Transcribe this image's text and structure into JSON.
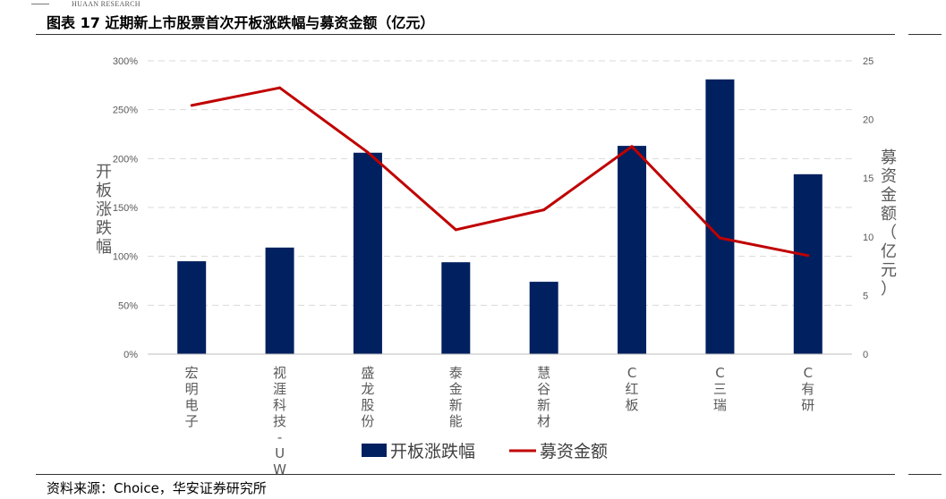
{
  "header": {
    "brand": "HUAAN RESEARCH",
    "title": "图表 17 近期新上市股票首次开板涨跌幅与募资金额（亿元）"
  },
  "source": "资料来源：Choice，华安证券研究所",
  "colors": {
    "bar": "#002060",
    "line": "#C00000",
    "grid": "#D9D9D9",
    "tick_text": "#595959"
  },
  "chart_data": {
    "type": "bar",
    "categories": [
      "宏明电子",
      "视涯科技-UW",
      "盛龙股份",
      "泰金新能",
      "慧谷新材",
      "C红板",
      "C三瑞",
      "C有研"
    ],
    "series": [
      {
        "name": "开板涨跌幅",
        "type": "bar",
        "axis": "left",
        "values": [
          95,
          109,
          206,
          94,
          74,
          213,
          281,
          184
        ]
      },
      {
        "name": "募资金额",
        "type": "line",
        "axis": "right",
        "values": [
          21.2,
          22.7,
          17.2,
          10.6,
          12.3,
          17.7,
          9.9,
          8.4
        ]
      }
    ],
    "y_left": {
      "label": "开板涨跌幅",
      "min": 0,
      "max": 300,
      "step": 50,
      "ticks": [
        "0%",
        "50%",
        "100%",
        "150%",
        "200%",
        "250%",
        "300%"
      ]
    },
    "y_right": {
      "label": "募资金额（亿元）",
      "min": 0,
      "max": 25,
      "step": 5,
      "ticks": [
        "0",
        "5",
        "10",
        "15",
        "20",
        "25"
      ]
    },
    "grid": true,
    "legend": "bottom"
  }
}
